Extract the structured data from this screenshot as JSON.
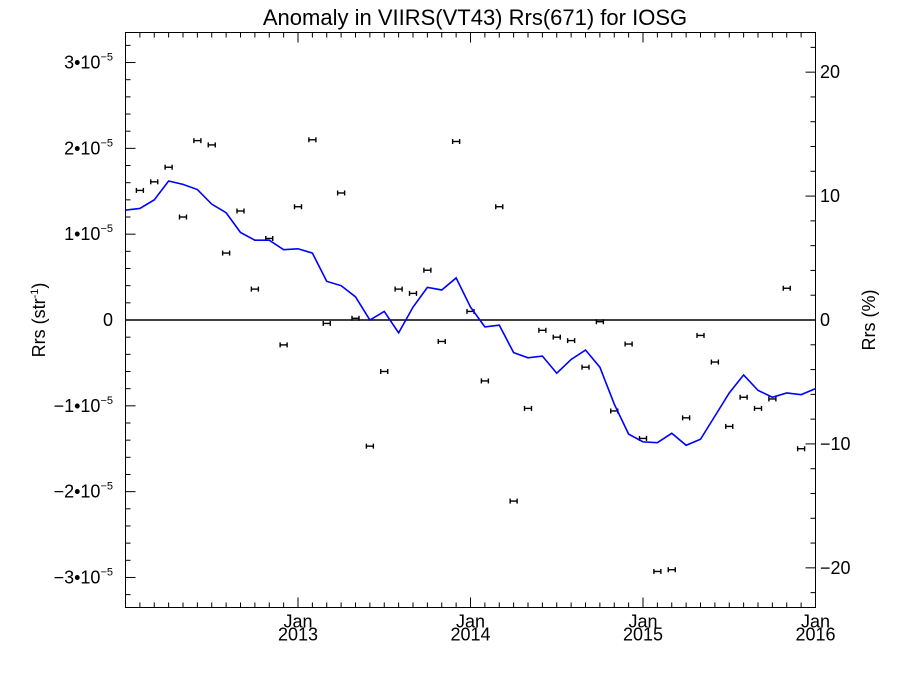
{
  "chart_data": {
    "type": "scatter",
    "title": "Anomaly in VIIRS(VT43) Rrs(671) for IOSG",
    "ylabel": {
      "base": "Rrs (str",
      "sup": "-1",
      "end": ")"
    },
    "y2label": "Rrs (%)",
    "xlim": [
      2012.0,
      2016.0
    ],
    "ylim": [
      -3.35e-05,
      3.35e-05
    ],
    "y2lim": [
      -23.2,
      23.2
    ],
    "x_ticks": [
      {
        "x": 2013,
        "month": "Jan",
        "year": "2013"
      },
      {
        "x": 2014,
        "month": "Jan",
        "year": "2014"
      },
      {
        "x": 2015,
        "month": "Jan",
        "year": "2015"
      },
      {
        "x": 2016,
        "month": "Jan",
        "year": "2016"
      }
    ],
    "y_ticks": [
      {
        "value": 3e-05,
        "mant": "3",
        "exp": "-5"
      },
      {
        "value": 2e-05,
        "mant": "2",
        "exp": "-5"
      },
      {
        "value": 1e-05,
        "mant": "1",
        "exp": "-5"
      },
      {
        "value": 0,
        "mant": "0",
        "exp": ""
      },
      {
        "value": -1e-05,
        "mant": "−1",
        "exp": "-5"
      },
      {
        "value": -2e-05,
        "mant": "−2",
        "exp": "-5"
      },
      {
        "value": -3e-05,
        "mant": "−3",
        "exp": "-5"
      }
    ],
    "y2_ticks": [
      {
        "value": 20,
        "label": "20"
      },
      {
        "value": 10,
        "label": "10"
      },
      {
        "value": 0,
        "label": "0"
      },
      {
        "value": -10,
        "label": "−10"
      },
      {
        "value": -20,
        "label": "−20"
      }
    ],
    "zero_line": true,
    "colors": {
      "line": "#0000ff",
      "points": "#000000",
      "zero": "#000000"
    },
    "series": [
      {
        "kind": "points_with_error_bars",
        "points": [
          {
            "x": "2012-02",
            "y": 1.51e-05
          },
          {
            "x": "2012-03",
            "y": 1.61e-05
          },
          {
            "x": "2012-04",
            "y": 1.78e-05
          },
          {
            "x": "2012-05",
            "y": 1.2e-05
          },
          {
            "x": "2012-06",
            "y": 2.09e-05
          },
          {
            "x": "2012-07",
            "y": 2.04e-05
          },
          {
            "x": "2012-08",
            "y": 7.8e-06
          },
          {
            "x": "2012-09",
            "y": 1.27e-05
          },
          {
            "x": "2012-10",
            "y": 3.6e-06
          },
          {
            "x": "2012-11",
            "y": 9.5e-06
          },
          {
            "x": "2012-12",
            "y": -2.9e-06
          },
          {
            "x": "2013-01",
            "y": 1.32e-05
          },
          {
            "x": "2013-02",
            "y": 2.1e-05
          },
          {
            "x": "2013-03",
            "y": -4e-07
          },
          {
            "x": "2013-04",
            "y": 1.48e-05
          },
          {
            "x": "2013-05",
            "y": 2e-07
          },
          {
            "x": "2013-06",
            "y": -1.47e-05
          },
          {
            "x": "2013-07",
            "y": -6e-06
          },
          {
            "x": "2013-08",
            "y": 3.6e-06
          },
          {
            "x": "2013-09",
            "y": 3.1e-06
          },
          {
            "x": "2013-10",
            "y": 5.8e-06
          },
          {
            "x": "2013-11",
            "y": -2.5e-06
          },
          {
            "x": "2013-12",
            "y": 2.08e-05
          },
          {
            "x": "2014-01",
            "y": 1e-06
          },
          {
            "x": "2014-02",
            "y": -7.1e-06
          },
          {
            "x": "2014-03",
            "y": 1.32e-05
          },
          {
            "x": "2014-04",
            "y": -2.11e-05
          },
          {
            "x": "2014-05",
            "y": -1.03e-05
          },
          {
            "x": "2014-06",
            "y": -1.2e-06
          },
          {
            "x": "2014-07",
            "y": -2e-06
          },
          {
            "x": "2014-08",
            "y": -2.4e-06
          },
          {
            "x": "2014-09",
            "y": -5.5e-06
          },
          {
            "x": "2014-10",
            "y": -2e-07
          },
          {
            "x": "2014-11",
            "y": -1.06e-05
          },
          {
            "x": "2014-12",
            "y": -2.8e-06
          },
          {
            "x": "2015-01",
            "y": -1.38e-05
          },
          {
            "x": "2015-02",
            "y": -2.93e-05
          },
          {
            "x": "2015-03",
            "y": -2.91e-05
          },
          {
            "x": "2015-04",
            "y": -1.14e-05
          },
          {
            "x": "2015-05",
            "y": -1.8e-06
          },
          {
            "x": "2015-06",
            "y": -4.9e-06
          },
          {
            "x": "2015-07",
            "y": -1.24e-05
          },
          {
            "x": "2015-08",
            "y": -9e-06
          },
          {
            "x": "2015-09",
            "y": -1.03e-05
          },
          {
            "x": "2015-10",
            "y": -9.2e-06
          },
          {
            "x": "2015-11",
            "y": 3.7e-06
          },
          {
            "x": "2015-12",
            "y": -1.5e-05
          }
        ]
      },
      {
        "kind": "line",
        "points": [
          {
            "x": "2012-01",
            "y": 1.28e-05
          },
          {
            "x": "2012-02",
            "y": 1.3e-05
          },
          {
            "x": "2012-03",
            "y": 1.4e-05
          },
          {
            "x": "2012-04",
            "y": 1.62e-05
          },
          {
            "x": "2012-05",
            "y": 1.58e-05
          },
          {
            "x": "2012-06",
            "y": 1.52e-05
          },
          {
            "x": "2012-07",
            "y": 1.35e-05
          },
          {
            "x": "2012-08",
            "y": 1.25e-05
          },
          {
            "x": "2012-09",
            "y": 1.02e-05
          },
          {
            "x": "2012-10",
            "y": 9.3e-06
          },
          {
            "x": "2012-11",
            "y": 9.3e-06
          },
          {
            "x": "2012-12",
            "y": 8.2e-06
          },
          {
            "x": "2013-01",
            "y": 8.3e-06
          },
          {
            "x": "2013-02",
            "y": 7.8e-06
          },
          {
            "x": "2013-03",
            "y": 4.5e-06
          },
          {
            "x": "2013-04",
            "y": 4e-06
          },
          {
            "x": "2013-05",
            "y": 2.7e-06
          },
          {
            "x": "2013-06",
            "y": 0.0
          },
          {
            "x": "2013-07",
            "y": 1e-06
          },
          {
            "x": "2013-08",
            "y": -1.5e-06
          },
          {
            "x": "2013-09",
            "y": 1.5e-06
          },
          {
            "x": "2013-10",
            "y": 3.8e-06
          },
          {
            "x": "2013-11",
            "y": 3.5e-06
          },
          {
            "x": "2013-12",
            "y": 4.9e-06
          },
          {
            "x": "2014-01",
            "y": 1.5e-06
          },
          {
            "x": "2014-02",
            "y": -8e-07
          },
          {
            "x": "2014-03",
            "y": -6e-07
          },
          {
            "x": "2014-04",
            "y": -3.8e-06
          },
          {
            "x": "2014-05",
            "y": -4.4e-06
          },
          {
            "x": "2014-06",
            "y": -4.2e-06
          },
          {
            "x": "2014-07",
            "y": -6.2e-06
          },
          {
            "x": "2014-08",
            "y": -4.6e-06
          },
          {
            "x": "2014-09",
            "y": -3.5e-06
          },
          {
            "x": "2014-10",
            "y": -5.5e-06
          },
          {
            "x": "2014-11",
            "y": -9.8e-06
          },
          {
            "x": "2014-12",
            "y": -1.33e-05
          },
          {
            "x": "2015-01",
            "y": -1.42e-05
          },
          {
            "x": "2015-02",
            "y": -1.43e-05
          },
          {
            "x": "2015-03",
            "y": -1.32e-05
          },
          {
            "x": "2015-04",
            "y": -1.46e-05
          },
          {
            "x": "2015-05",
            "y": -1.39e-05
          },
          {
            "x": "2015-06",
            "y": -1.12e-05
          },
          {
            "x": "2015-07",
            "y": -8.5e-06
          },
          {
            "x": "2015-08",
            "y": -6.4e-06
          },
          {
            "x": "2015-09",
            "y": -8.2e-06
          },
          {
            "x": "2015-10",
            "y": -9e-06
          },
          {
            "x": "2015-11",
            "y": -8.5e-06
          },
          {
            "x": "2015-12",
            "y": -8.7e-06
          },
          {
            "x": "2016-01",
            "y": -8e-06
          }
        ]
      }
    ]
  }
}
